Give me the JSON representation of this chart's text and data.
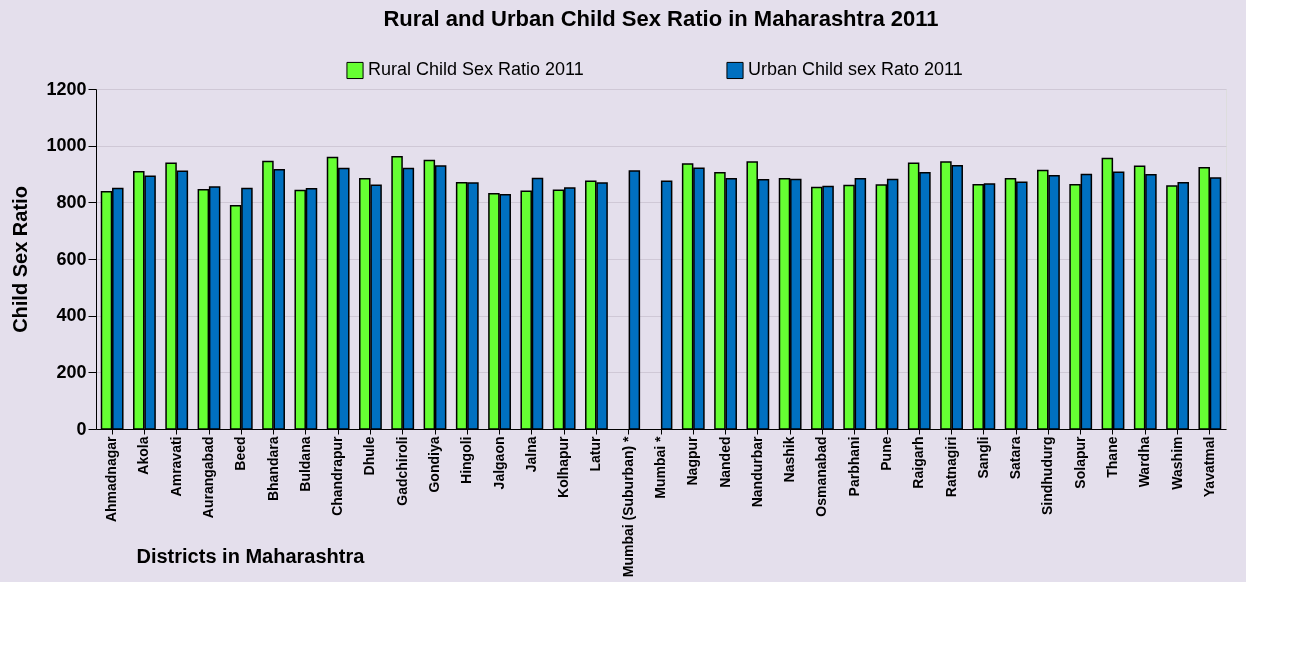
{
  "chart_data": {
    "type": "bar",
    "title": "Rural and Urban Child Sex Ratio in Maharashtra 2011",
    "xlabel": "Districts in Maharashtra",
    "ylabel": "Child Sex Ratio",
    "categories": [
      "Ahmadnagar",
      "Akola",
      "Amravati",
      "Aurangabad",
      "Beed",
      "Bhandara",
      "Buldana",
      "Chandrapur",
      "Dhule",
      "Gadchiroli",
      "Gondiya",
      "Hingoli",
      "Jalgaon",
      "Jalna",
      "Kolhapur",
      "Latur",
      "Mumbai (Suburban) *",
      "Mumbai *",
      "Nagpur",
      "Nanded",
      "Nandurbar",
      "Nashik",
      "Osmanabad",
      "Parbhani",
      "Pune",
      "Raigarh",
      "Ratnagiri",
      "Sangli",
      "Satara",
      "Sindhudurg",
      "Solapur",
      "Thane",
      "Wardha",
      "Washim",
      "Yavatmal"
    ],
    "series": [
      {
        "name": "Rural Child Sex Ratio 2011",
        "color": "#66ff33",
        "values": [
          837,
          908,
          938,
          844,
          788,
          944,
          842,
          958,
          883,
          961,
          948,
          869,
          830,
          839,
          843,
          874,
          null,
          null,
          935,
          904,
          942,
          883,
          852,
          859,
          861,
          938,
          942,
          862,
          883,
          912,
          862,
          955,
          927,
          858,
          922
        ]
      },
      {
        "name": "Urban Child sex Rato 2011",
        "color": "#0070c0",
        "values": [
          849,
          892,
          910,
          854,
          849,
          915,
          848,
          919,
          860,
          919,
          928,
          868,
          827,
          884,
          851,
          868,
          911,
          874,
          920,
          883,
          880,
          881,
          856,
          883,
          881,
          904,
          929,
          865,
          871,
          894,
          898,
          906,
          897,
          869,
          886
        ]
      }
    ],
    "ylim": [
      0,
      1200
    ],
    "yticks": [
      0,
      200,
      400,
      600,
      800,
      1000,
      1200
    ],
    "grid": "y",
    "legend": "top"
  }
}
